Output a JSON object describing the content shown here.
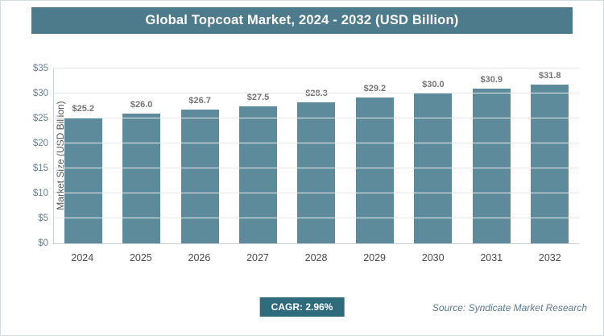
{
  "header": {
    "title": "Global Topcoat Market, 2024 - 2032 (USD Billion)"
  },
  "footer": {
    "cagr_label": "CAGR: 2.96%",
    "source": "Source: Syndicate Market Research"
  },
  "colors": {
    "banner": "#4d7b8b",
    "bar": "#5e8b9b",
    "badge": "#2e6b7d"
  },
  "chart_data": {
    "type": "bar",
    "title": "Global Topcoat Market, 2024 - 2032 (USD Billion)",
    "categories": [
      "2024",
      "2025",
      "2026",
      "2027",
      "2028",
      "2029",
      "2030",
      "2031",
      "2032"
    ],
    "values": [
      25.2,
      26.0,
      26.7,
      27.5,
      28.3,
      29.2,
      30.0,
      30.9,
      31.8
    ],
    "value_labels": [
      "$25.2",
      "$26.0",
      "$26.7",
      "$27.5",
      "$28.3",
      "$29.2",
      "$30.0",
      "$30.9",
      "$31.8"
    ],
    "xlabel": "",
    "ylabel": "Market Size (USD Billion)",
    "ylim": [
      0,
      35
    ],
    "ytick_step": 5,
    "ytick_labels": [
      "$0",
      "$5",
      "$10",
      "$15",
      "$20",
      "$25",
      "$30",
      "$35"
    ],
    "grid": true,
    "legend": "none"
  }
}
